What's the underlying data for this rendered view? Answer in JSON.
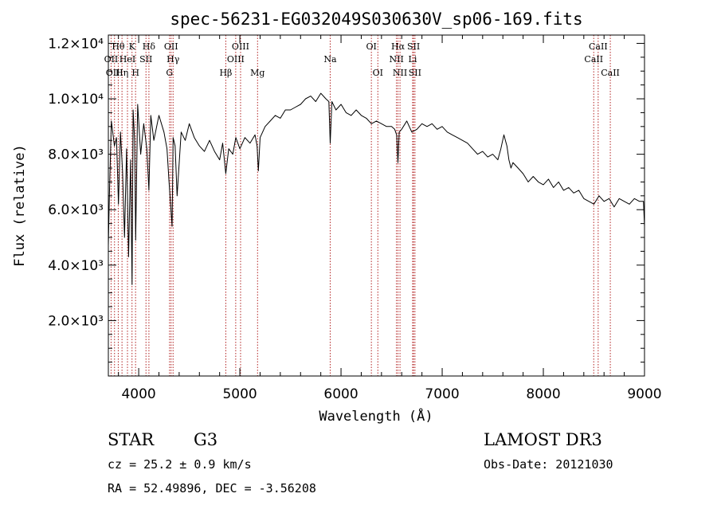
{
  "chart_data": {
    "type": "line",
    "title": "spec-56231-EG032049S030630V_sp06-169.fits",
    "xlabel": "Wavelength (Å)",
    "ylabel": "Flux (relative)",
    "xlim": [
      3700,
      9000
    ],
    "ylim": [
      0,
      12300
    ],
    "x_ticks": [
      4000,
      5000,
      6000,
      7000,
      8000,
      9000
    ],
    "x_tick_labels": [
      "4000",
      "5000",
      "6000",
      "7000",
      "8000",
      "9000"
    ],
    "y_ticks": [
      2000,
      4000,
      6000,
      8000,
      10000,
      12000
    ],
    "y_tick_labels": [
      "2.0×10³",
      "4.0×10³",
      "6.0×10³",
      "8.0×10³",
      "1.0×10⁴",
      "1.2×10⁴"
    ],
    "series": [
      {
        "name": "spectrum",
        "x": [
          3700,
          3710,
          3730,
          3760,
          3780,
          3800,
          3820,
          3840,
          3860,
          3880,
          3900,
          3920,
          3935,
          3945,
          3960,
          3970,
          3990,
          4020,
          4050,
          4080,
          4101,
          4120,
          4150,
          4200,
          4250,
          4280,
          4300,
          4330,
          4340,
          4360,
          4380,
          4420,
          4460,
          4500,
          4550,
          4600,
          4650,
          4700,
          4750,
          4800,
          4830,
          4861,
          4890,
          4930,
          4960,
          5000,
          5050,
          5100,
          5150,
          5170,
          5183,
          5200,
          5250,
          5300,
          5350,
          5400,
          5450,
          5500,
          5550,
          5600,
          5650,
          5700,
          5750,
          5800,
          5850,
          5880,
          5893,
          5910,
          5950,
          6000,
          6050,
          6100,
          6150,
          6200,
          6250,
          6300,
          6350,
          6400,
          6450,
          6500,
          6530,
          6550,
          6563,
          6575,
          6600,
          6650,
          6700,
          6750,
          6800,
          6850,
          6900,
          6950,
          7000,
          7050,
          7100,
          7150,
          7200,
          7250,
          7300,
          7350,
          7400,
          7450,
          7500,
          7550,
          7580,
          7610,
          7640,
          7660,
          7680,
          7700,
          7750,
          7800,
          7850,
          7900,
          7950,
          8000,
          8050,
          8100,
          8150,
          8200,
          8250,
          8300,
          8350,
          8400,
          8450,
          8500,
          8550,
          8600,
          8650,
          8700,
          8750,
          8800,
          8850,
          8900,
          8950,
          8990,
          9000
        ],
        "values": [
          4700,
          6500,
          9200,
          8300,
          8600,
          6200,
          8800,
          7400,
          5000,
          8200,
          4300,
          7800,
          3300,
          9600,
          8500,
          4900,
          9800,
          8000,
          9100,
          8200,
          6700,
          9400,
          8500,
          9400,
          8800,
          8200,
          7000,
          5400,
          8600,
          8300,
          6500,
          8800,
          8500,
          9100,
          8600,
          8300,
          8100,
          8500,
          8100,
          7800,
          8400,
          7300,
          8200,
          8000,
          8600,
          8200,
          8600,
          8400,
          8700,
          8300,
          7400,
          8600,
          9000,
          9200,
          9400,
          9300,
          9600,
          9600,
          9700,
          9800,
          10000,
          10100,
          9900,
          10200,
          10000,
          9900,
          8400,
          9900,
          9600,
          9800,
          9500,
          9400,
          9600,
          9400,
          9300,
          9100,
          9200,
          9100,
          9000,
          9000,
          8900,
          8700,
          7700,
          8800,
          8900,
          9200,
          8800,
          8900,
          9100,
          9000,
          9100,
          8900,
          9000,
          8800,
          8700,
          8600,
          8500,
          8400,
          8200,
          8000,
          8100,
          7900,
          8000,
          7800,
          8200,
          8700,
          8300,
          7800,
          7500,
          7700,
          7500,
          7300,
          7000,
          7200,
          7000,
          6900,
          7100,
          6800,
          7000,
          6700,
          6800,
          6600,
          6700,
          6400,
          6300,
          6200,
          6500,
          6300,
          6400,
          6100,
          6400,
          6300,
          6200,
          6400,
          6300,
          6300,
          5400
        ]
      }
    ],
    "spectral_lines": [
      {
        "label": "Hθ",
        "wavelength": 3798,
        "row": 0
      },
      {
        "label": "K",
        "wavelength": 3934,
        "row": 0
      },
      {
        "label": "Hδ",
        "wavelength": 4101,
        "row": 0
      },
      {
        "label": "OII",
        "wavelength": 4320,
        "row": 0
      },
      {
        "label": "OIII",
        "wavelength": 5007,
        "row": 0
      },
      {
        "label": "OI",
        "wavelength": 6300,
        "row": 0
      },
      {
        "label": "Hα",
        "wavelength": 6563,
        "row": 0
      },
      {
        "label": "SII",
        "wavelength": 6717,
        "row": 0
      },
      {
        "label": "CaII",
        "wavelength": 8542,
        "row": 0
      },
      {
        "label": "OII",
        "wavelength": 3727,
        "row": 1
      },
      {
        "label": "HeI",
        "wavelength": 3889,
        "row": 1
      },
      {
        "label": "SII",
        "wavelength": 4072,
        "row": 1
      },
      {
        "label": "Hγ",
        "wavelength": 4340,
        "row": 1
      },
      {
        "label": "OIII",
        "wavelength": 4959,
        "row": 1
      },
      {
        "label": "Na",
        "wavelength": 5893,
        "row": 1
      },
      {
        "label": "NII",
        "wavelength": 6548,
        "row": 1
      },
      {
        "label": "Li",
        "wavelength": 6708,
        "row": 1
      },
      {
        "label": "CaII",
        "wavelength": 8498,
        "row": 1
      },
      {
        "label": "OIII",
        "wavelength": 3761,
        "row": 2
      },
      {
        "label": "Hη",
        "wavelength": 3835,
        "row": 2
      },
      {
        "label": "H",
        "wavelength": 3969,
        "row": 2
      },
      {
        "label": "G",
        "wavelength": 4305,
        "row": 2
      },
      {
        "label": "Hβ",
        "wavelength": 4861,
        "row": 2
      },
      {
        "label": "Mg",
        "wavelength": 5175,
        "row": 2
      },
      {
        "label": "OI",
        "wavelength": 6364,
        "row": 2
      },
      {
        "label": "NII",
        "wavelength": 6583,
        "row": 2
      },
      {
        "label": "SII",
        "wavelength": 6731,
        "row": 2
      },
      {
        "label": "CaII",
        "wavelength": 8662,
        "row": 2
      }
    ]
  },
  "info": {
    "object_class": "STAR",
    "subclass": "G3",
    "survey": "LAMOST DR3",
    "redshift": "cz = 25.2 ± 0.9 km/s",
    "obs_date": "Obs-Date: 20121030",
    "coords": "RA =  52.49896, DEC =  -3.56208"
  },
  "colors": {
    "axis": "#000000",
    "spectrum": "#000000",
    "line_markers": "#b22222"
  }
}
